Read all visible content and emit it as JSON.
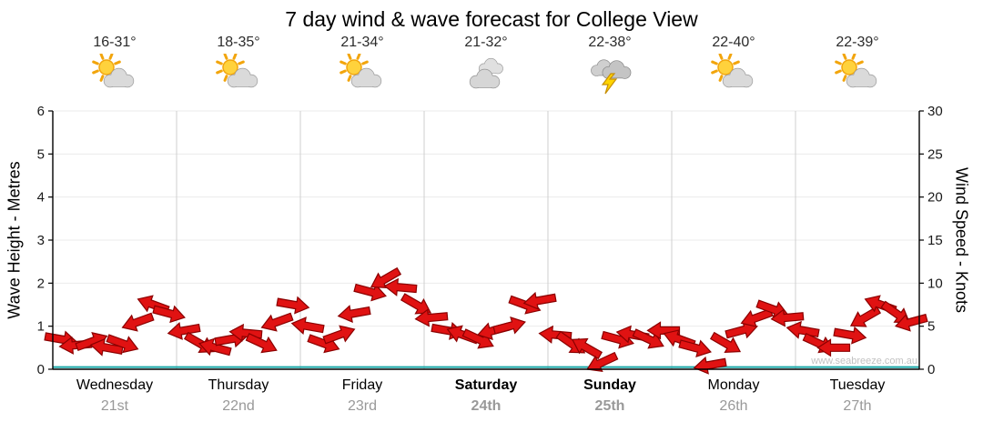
{
  "title": "7 day wind & wave forecast for College View",
  "watermark": "www.seabreeze.com.au",
  "chart_data": {
    "type": "scatter",
    "subtype": "wind-arrows",
    "title": "7 day wind & wave forecast for College View",
    "left_axis": {
      "label": "Wave Height - Metres",
      "range": [
        0,
        6
      ],
      "ticks": [
        0,
        1,
        2,
        3,
        4,
        5,
        6
      ]
    },
    "right_axis": {
      "label": "Wind Speed - Knots",
      "range": [
        0,
        30
      ],
      "ticks": [
        0,
        5,
        10,
        15,
        20,
        25,
        30
      ]
    },
    "days": [
      {
        "name": "Wednesday",
        "date": "21st",
        "temp": "16-31°",
        "icon": "sun-cloud",
        "weekend": false
      },
      {
        "name": "Thursday",
        "date": "22nd",
        "temp": "18-35°",
        "icon": "sun-cloud",
        "weekend": false
      },
      {
        "name": "Friday",
        "date": "23rd",
        "temp": "21-34°",
        "icon": "sun-cloud",
        "weekend": false
      },
      {
        "name": "Saturday",
        "date": "24th",
        "temp": "21-32°",
        "icon": "cloud",
        "weekend": true
      },
      {
        "name": "Sunday",
        "date": "25th",
        "temp": "22-38°",
        "icon": "storm",
        "weekend": true
      },
      {
        "name": "Monday",
        "date": "26th",
        "temp": "22-40°",
        "icon": "sun-cloud",
        "weekend": false
      },
      {
        "name": "Tuesday",
        "date": "27th",
        "temp": "22-39°",
        "icon": "sun-cloud",
        "weekend": false
      }
    ],
    "samples_per_day": 8,
    "wind_speed_knots": [
      3.5,
      2.8,
      3.2,
      2.5,
      3.0,
      5.5,
      7.5,
      6.5,
      4.5,
      3.0,
      2.5,
      3.5,
      4.2,
      3.0,
      5.5,
      7.5,
      5.0,
      3.0,
      4.0,
      6.5,
      9.0,
      10.5,
      9.5,
      7.5,
      6.0,
      4.5,
      4.0,
      3.5,
      4.5,
      5.0,
      7.5,
      8.0,
      4.0,
      3.0,
      2.5,
      0.8,
      3.5,
      4.0,
      3.5,
      4.5,
      3.5,
      2.5,
      0.5,
      3.0,
      4.5,
      6.0,
      7.0,
      6.0,
      4.5,
      3.0,
      2.5,
      4.0,
      6.0,
      7.5,
      6.5,
      5.5
    ],
    "wind_dir_deg": [
      10,
      175,
      340,
      190,
      20,
      160,
      200,
      15,
      170,
      30,
      195,
      350,
      185,
      25,
      160,
      10,
      190,
      20,
      340,
      170,
      15,
      150,
      185,
      30,
      175,
      10,
      200,
      25,
      165,
      345,
      20,
      170,
      185,
      35,
      210,
      155,
      15,
      190,
      25,
      180,
      200,
      15,
      170,
      30,
      345,
      160,
      20,
      175,
      190,
      25,
      180,
      10,
      150,
      200,
      35,
      165
    ],
    "wave_height_metres": {
      "constant": 0.05
    },
    "colors": {
      "arrow": "#e01212",
      "arrow_outline": "#8a0000",
      "wave_line": "#18a7a7",
      "grid_h": "#ebebeb",
      "grid_v": "#cfcfcf",
      "axis": "#000000"
    }
  }
}
